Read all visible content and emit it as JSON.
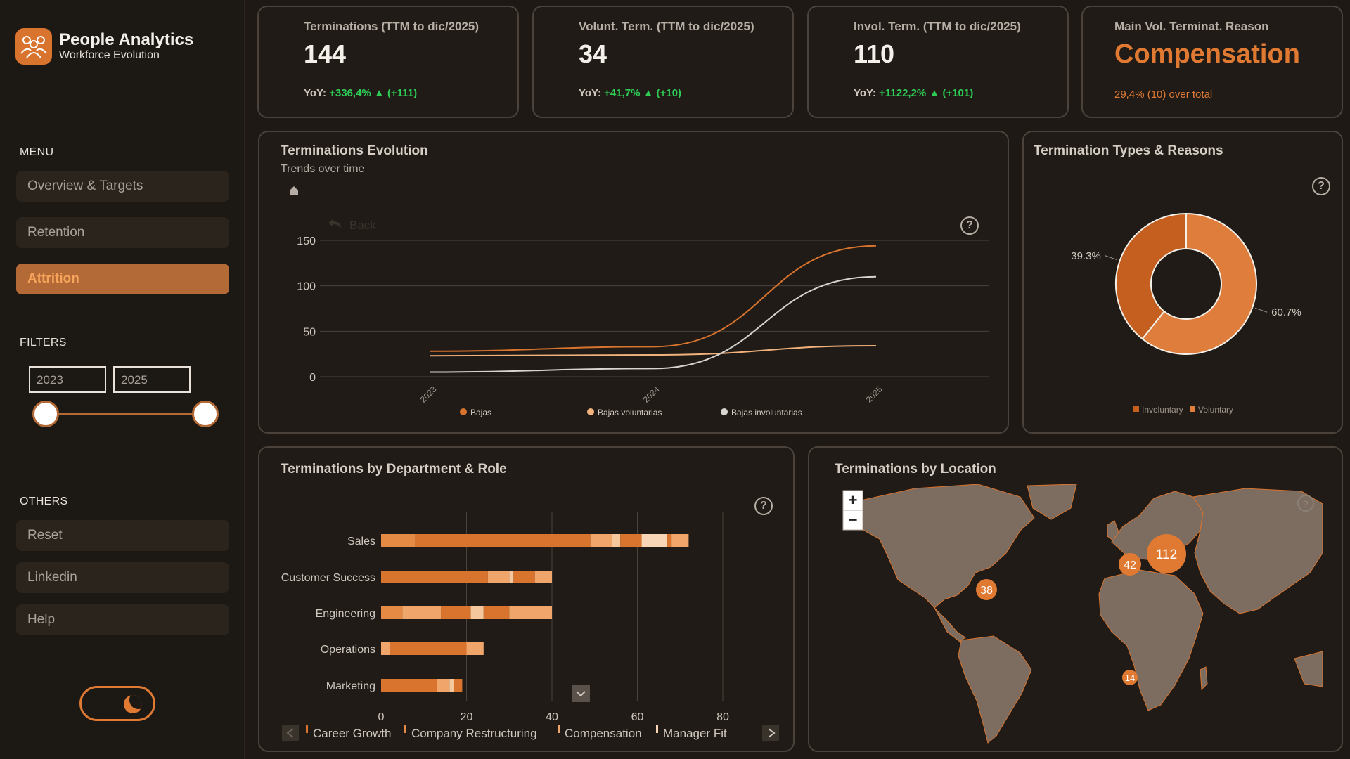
{
  "brand": {
    "title": "People Analytics",
    "subtitle": "Workforce Evolution"
  },
  "menu": {
    "heading": "MENU",
    "items": [
      {
        "label": "Overview & Targets",
        "active": false
      },
      {
        "label": "Retention",
        "active": false
      },
      {
        "label": "Attrition",
        "active": true
      }
    ]
  },
  "filters": {
    "heading": "FILTERS",
    "year_from": "2023",
    "year_to": "2025"
  },
  "others": {
    "heading": "OTHERS",
    "items": [
      "Reset",
      "Linkedin",
      "Help"
    ]
  },
  "kpis": [
    {
      "title": "Terminations (TTM to dic/2025)",
      "value": "144",
      "yoy_label": "YoY:",
      "yoy_value": "+336,4% ▲ (+111)"
    },
    {
      "title": "Volunt. Term. (TTM to dic/2025)",
      "value": "34",
      "yoy_label": "YoY:",
      "yoy_value": "+41,7% ▲ (+10)"
    },
    {
      "title": "Invol. Term. (TTM to dic/2025)",
      "value": "110",
      "yoy_label": "YoY:",
      "yoy_value": "+1122,2% ▲ (+101)"
    }
  ],
  "main_reason": {
    "title": "Main Vol. Terminat. Reason",
    "value": "Compensation",
    "subtitle": "29,4% (10) over total"
  },
  "evolution": {
    "title": "Terminations Evolution",
    "subtitle": "Trends over time",
    "back_label": "Back",
    "chart_data": {
      "type": "line",
      "x": [
        "2023",
        "2024",
        "2025"
      ],
      "ylim": [
        0,
        150
      ],
      "yticks": [
        0,
        50,
        100,
        150
      ],
      "grid": true,
      "legend_position": "bottom",
      "series": [
        {
          "name": "Bajas",
          "color": "#d9742e",
          "values": [
            28,
            33,
            144
          ]
        },
        {
          "name": "Bajas voluntarias",
          "color": "#f2b27c",
          "values": [
            23,
            24,
            34
          ]
        },
        {
          "name": "Bajas involuntarias",
          "color": "#d8d4d0",
          "values": [
            5,
            9,
            110
          ]
        }
      ]
    }
  },
  "types": {
    "title": "Termination Types & Reasons",
    "chart_data": {
      "type": "pie",
      "donut": true,
      "legend_position": "bottom",
      "slices": [
        {
          "name": "Involuntary",
          "value": 39.3,
          "label": "39.3%",
          "color": "#c55f20"
        },
        {
          "name": "Voluntary",
          "value": 60.7,
          "label": "60.7%",
          "color": "#df7e3c"
        }
      ]
    }
  },
  "department": {
    "title": "Terminations by Department & Role",
    "chart_data": {
      "type": "bar",
      "orientation": "horizontal",
      "stacked": true,
      "categories": [
        "Sales",
        "Customer Success",
        "Engineering",
        "Operations",
        "Marketing"
      ],
      "xlim": [
        0,
        80
      ],
      "xticks": [
        0,
        20,
        40,
        60,
        80
      ],
      "legend_position": "bottom",
      "legend": [
        "Career Growth",
        "Company Restructuring",
        "Compensation",
        "Manager Fit"
      ],
      "segments": [
        [
          {
            "value": 8,
            "color": "#e58a45"
          },
          {
            "value": 41,
            "color": "#d9742e"
          },
          {
            "value": 5,
            "color": "#f0a56b"
          },
          {
            "value": 2,
            "color": "#f5c79d"
          },
          {
            "value": 5,
            "color": "#d9742e"
          },
          {
            "value": 6,
            "color": "#f7d6b8"
          },
          {
            "value": 1,
            "color": "#d9742e"
          },
          {
            "value": 4,
            "color": "#f0a56b"
          }
        ],
        [
          {
            "value": 25,
            "color": "#d9742e"
          },
          {
            "value": 5,
            "color": "#f0a56b"
          },
          {
            "value": 1,
            "color": "#f5c79d"
          },
          {
            "value": 5,
            "color": "#d9742e"
          },
          {
            "value": 4,
            "color": "#f0a56b"
          }
        ],
        [
          {
            "value": 5,
            "color": "#e58a45"
          },
          {
            "value": 9,
            "color": "#f0a56b"
          },
          {
            "value": 7,
            "color": "#d9742e"
          },
          {
            "value": 3,
            "color": "#f5c79d"
          },
          {
            "value": 6,
            "color": "#d9742e"
          },
          {
            "value": 10,
            "color": "#f0a56b"
          }
        ],
        [
          {
            "value": 2,
            "color": "#f0a56b"
          },
          {
            "value": 18,
            "color": "#d9742e"
          },
          {
            "value": 4,
            "color": "#f0a56b"
          }
        ],
        [
          {
            "value": 13,
            "color": "#d9742e"
          },
          {
            "value": 3,
            "color": "#f0a56b"
          },
          {
            "value": 1,
            "color": "#f5c79d"
          },
          {
            "value": 2,
            "color": "#d9742e"
          }
        ]
      ]
    }
  },
  "location": {
    "title": "Terminations by Location",
    "zoom_in": "+",
    "zoom_out": "−",
    "clusters": [
      {
        "count": "112",
        "region": "Central Europe"
      },
      {
        "count": "42",
        "region": "Western Europe"
      },
      {
        "count": "38",
        "region": "Eastern United States"
      },
      {
        "count": "14",
        "region": "West Africa"
      }
    ]
  },
  "colors": {
    "accent": "#d9742e",
    "positive": "#2ecc55",
    "background": "#1e1914",
    "card": "#201b16"
  }
}
